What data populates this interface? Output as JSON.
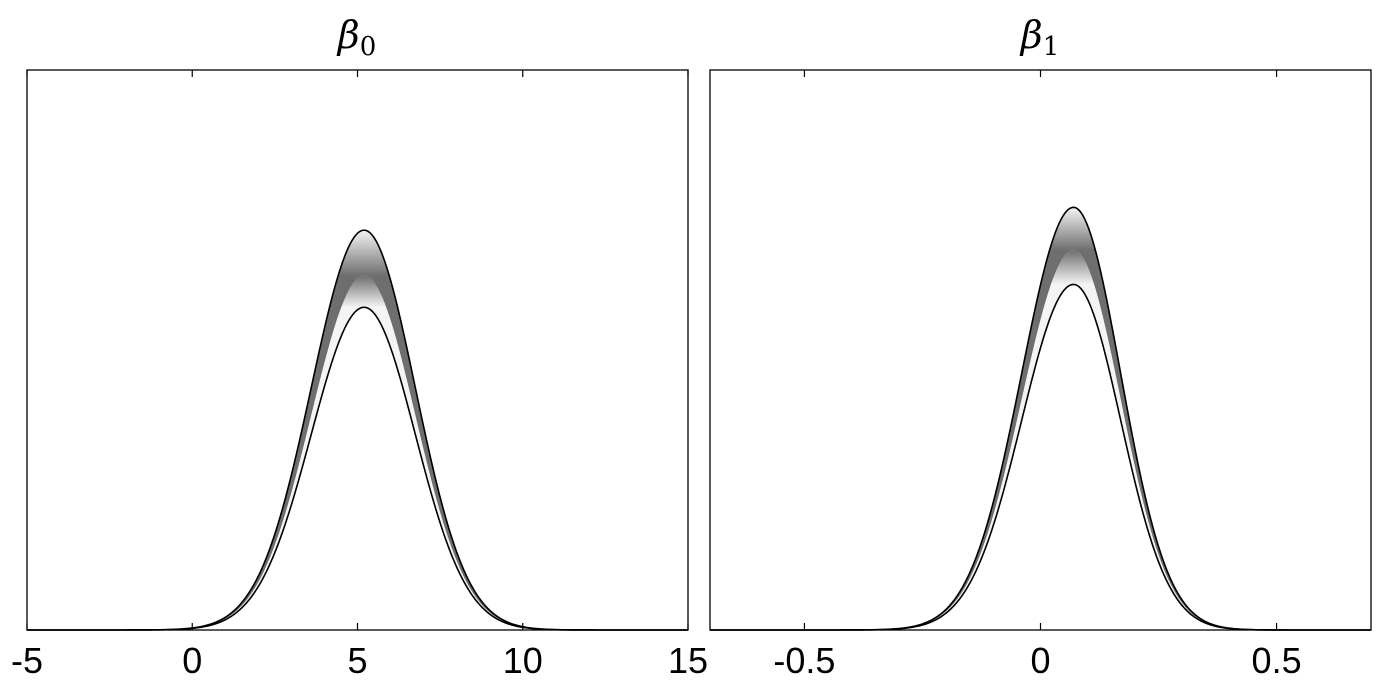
{
  "chart_data": [
    {
      "type": "area",
      "title": "β",
      "title_subscript": "0",
      "xlabel": "",
      "ylabel": "",
      "xlim": [
        -5,
        15
      ],
      "ylim": [
        0,
        1
      ],
      "grid": false,
      "legend": "none",
      "xticks": [
        -5,
        0,
        5,
        10,
        15
      ],
      "xtick_labels": [
        "-5",
        "0",
        "5",
        "10",
        "15"
      ],
      "band": {
        "center": 5.2,
        "upper": {
          "amplitude": 0.7,
          "sigma_left": 1.6,
          "sigma_right": 1.55
        },
        "median": {
          "amplitude": 0.62,
          "sigma_left": 1.6,
          "sigma_right": 1.55
        },
        "lower": {
          "amplitude": 0.565,
          "sigma_left": 1.6,
          "sigma_right": 1.55
        }
      },
      "colors": {
        "band_outer": "#f4f4f4",
        "band_core": "#6e6e6e",
        "edge": "#000000"
      }
    },
    {
      "type": "area",
      "title": "β",
      "title_subscript": "1",
      "xlabel": "",
      "ylabel": "",
      "xlim": [
        -0.7,
        0.7
      ],
      "ylim": [
        0,
        1
      ],
      "grid": false,
      "legend": "none",
      "xticks": [
        -0.5,
        0,
        0.5
      ],
      "xtick_labels": [
        "-0.5",
        "0",
        "0.5"
      ],
      "band": {
        "center": 0.07,
        "upper": {
          "amplitude": 0.74,
          "sigma_left": 0.11,
          "sigma_right": 0.1
        },
        "median": {
          "amplitude": 0.665,
          "sigma_left": 0.11,
          "sigma_right": 0.1
        },
        "lower": {
          "amplitude": 0.605,
          "sigma_left": 0.11,
          "sigma_right": 0.1
        }
      },
      "colors": {
        "band_outer": "#f4f4f4",
        "band_core": "#6e6e6e",
        "edge": "#000000"
      }
    }
  ]
}
